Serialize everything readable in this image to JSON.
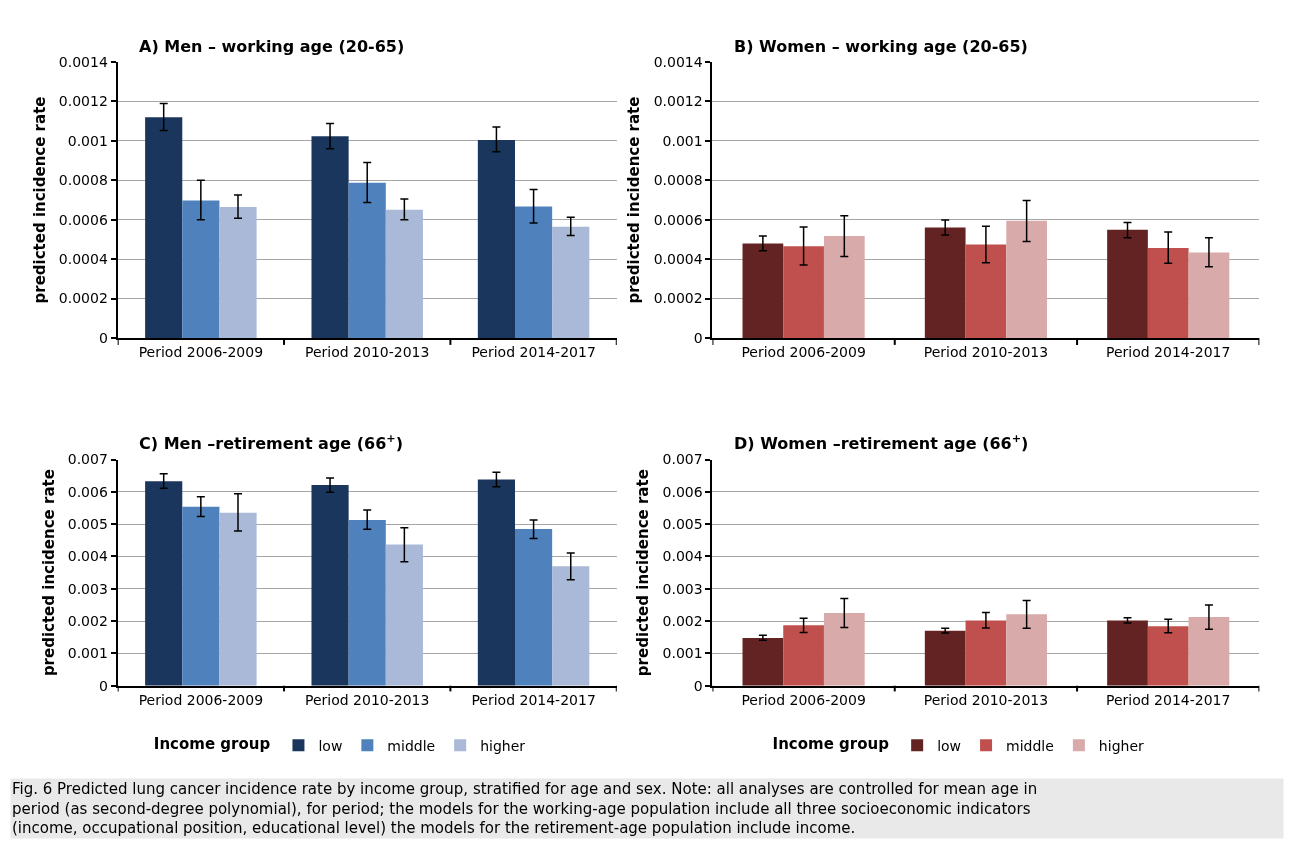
{
  "chart_data": [
    {
      "type": "bar",
      "title": "A) Men – working age (20-65)",
      "ylabel": "predicted incidence rate",
      "categories": [
        "Period 2006-2009",
        "Period 2010-2013",
        "Period 2014-2017"
      ],
      "ylim": [
        0,
        0.0014
      ],
      "yticks": [
        0,
        0.0002,
        0.0004,
        0.0006,
        0.0008,
        0.001,
        0.0012,
        0.0014
      ],
      "grid": "y",
      "legend": false,
      "series": [
        {
          "color": "#1b365d",
          "values": [
            0.00112,
            0.001023,
            0.001005
          ],
          "errors": [
            [
              0.001053,
              0.00119
            ],
            [
              0.00096,
              0.001088
            ],
            [
              0.000945,
              0.00107
            ]
          ]
        },
        {
          "color": "#4f81bd",
          "values": [
            0.000698,
            0.000788,
            0.000667
          ],
          "errors": [
            [
              0.0006,
              0.0008
            ],
            [
              0.000687,
              0.00089
            ],
            [
              0.000583,
              0.000753
            ]
          ]
        },
        {
          "color": "#aab9d7",
          "values": [
            0.000665,
            0.00065,
            0.000565
          ],
          "errors": [
            [
              0.000608,
              0.000725
            ],
            [
              0.0006,
              0.000705
            ],
            [
              0.00052,
              0.000612
            ]
          ]
        }
      ]
    },
    {
      "type": "bar",
      "title": "B) Women – working age (20-65)",
      "ylabel": "predicted incidence rate",
      "categories": [
        "Period 2006-2009",
        "Period 2010-2013",
        "Period 2014-2017"
      ],
      "ylim": [
        0,
        0.0014
      ],
      "yticks": [
        0,
        0.0002,
        0.0004,
        0.0006,
        0.0008,
        0.001,
        0.0012,
        0.0014
      ],
      "grid": "y",
      "legend": false,
      "series": [
        {
          "color": "#632323",
          "values": [
            0.000479,
            0.00056,
            0.000549
          ],
          "errors": [
            [
              0.000443,
              0.000518
            ],
            [
              0.000522,
              0.000599
            ],
            [
              0.000509,
              0.000586
            ]
          ]
        },
        {
          "color": "#c0504d",
          "values": [
            0.000465,
            0.000474,
            0.000456
          ],
          "errors": [
            [
              0.00037,
              0.000563
            ],
            [
              0.000382,
              0.000567
            ],
            [
              0.000379,
              0.000538
            ]
          ]
        },
        {
          "color": "#d9aaaa",
          "values": [
            0.000517,
            0.000595,
            0.000434
          ],
          "errors": [
            [
              0.000413,
              0.00062
            ],
            [
              0.00049,
              0.000697
            ],
            [
              0.000361,
              0.000509
            ]
          ]
        }
      ]
    },
    {
      "type": "bar",
      "title": "C) Men –retirement age (66$^{+}$)",
      "ylabel": "predicted incidence rate",
      "categories": [
        "Period 2006-2009",
        "Period 2010-2013",
        "Period 2014-2017"
      ],
      "ylim": [
        0,
        0.007
      ],
      "yticks": [
        0,
        0.001,
        0.002,
        0.003,
        0.004,
        0.005,
        0.006,
        0.007
      ],
      "grid": "y",
      "legend": "bottom",
      "legend_title": "Income group",
      "series": [
        {
          "name": "low",
          "color": "#1b365d",
          "values": [
            0.00633,
            0.00621,
            0.00638
          ],
          "errors": [
            [
              0.00611,
              0.00656
            ],
            [
              0.00599,
              0.00643
            ],
            [
              0.00616,
              0.00661
            ]
          ]
        },
        {
          "name": "middle",
          "color": "#4f81bd",
          "values": [
            0.00554,
            0.00513,
            0.00485
          ],
          "errors": [
            [
              0.00524,
              0.00585
            ],
            [
              0.00484,
              0.00544
            ],
            [
              0.00456,
              0.00513
            ]
          ]
        },
        {
          "name": "higher",
          "color": "#aab9d7",
          "values": [
            0.00535,
            0.00437,
            0.0037
          ],
          "errors": [
            [
              0.00479,
              0.00594
            ],
            [
              0.00384,
              0.00489
            ],
            [
              0.00328,
              0.00411
            ]
          ]
        }
      ]
    },
    {
      "type": "bar",
      "title": "D) Women –retirement age (66$^{+}$)",
      "ylabel": "predicted incidence rate",
      "categories": [
        "Period 2006-2009",
        "Period 2010-2013",
        "Period 2014-2017"
      ],
      "ylim": [
        0,
        0.007
      ],
      "yticks": [
        0,
        0.001,
        0.002,
        0.003,
        0.004,
        0.005,
        0.006,
        0.007
      ],
      "grid": "y",
      "legend": "bottom",
      "legend_title": "Income group",
      "annotations": [
        "Fig. 6 Predicted lung cancer incidence rate by income group, stratified for age and sex. Note: all analyses are controlled for mean age in period (as second-degree polynomial), for period; the models for the working-age population include all three socioeconomic indicators (income, occupational position, educational level) the models for the retirement-age population include income."
      ],
      "series": [
        {
          "name": "low",
          "color": "#632323",
          "values": [
            0.00148,
            0.0017,
            0.00202
          ],
          "errors": [
            [
              0.00141,
              0.00156
            ],
            [
              0.00163,
              0.00178
            ],
            [
              0.00194,
              0.0021
            ]
          ]
        },
        {
          "name": "middle",
          "color": "#c0504d",
          "values": [
            0.00187,
            0.00202,
            0.00184
          ],
          "errors": [
            [
              0.00165,
              0.00209
            ],
            [
              0.00179,
              0.00227
            ],
            [
              0.00164,
              0.00206
            ]
          ]
        },
        {
          "name": "higher",
          "color": "#d9aaaa",
          "values": [
            0.00225,
            0.00221,
            0.00213
          ],
          "errors": [
            [
              0.0018,
              0.0027
            ],
            [
              0.00178,
              0.00264
            ],
            [
              0.00175,
              0.0025
            ]
          ]
        }
      ]
    }
  ]
}
